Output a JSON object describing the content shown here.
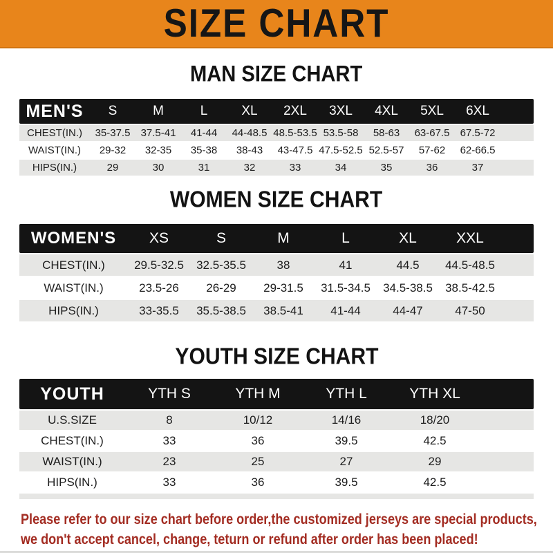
{
  "banner": {
    "title": "SIZE CHART"
  },
  "colors": {
    "banner_bg": "#E8851B",
    "header_bar_bg": "#141414",
    "row_shade": "#E6E6E4",
    "disclaimer_text": "#A32C22"
  },
  "men": {
    "heading": "MAN SIZE CHART",
    "header_label": "MEN'S",
    "columns": [
      "S",
      "M",
      "L",
      "XL",
      "2XL",
      "3XL",
      "4XL",
      "5XL",
      "6XL"
    ],
    "rows": [
      {
        "label": "CHEST(IN.)",
        "values": [
          "35-37.5",
          "37.5-41",
          "41-44",
          "44-48.5",
          "48.5-53.5",
          "53.5-58",
          "58-63",
          "63-67.5",
          "67.5-72"
        ]
      },
      {
        "label": "WAIST(IN.)",
        "values": [
          "29-32",
          "32-35",
          "35-38",
          "38-43",
          "43-47.5",
          "47.5-52.5",
          "52.5-57",
          "57-62",
          "62-66.5"
        ]
      },
      {
        "label": "HIPS(IN.)",
        "values": [
          "29",
          "30",
          "31",
          "32",
          "33",
          "34",
          "35",
          "36",
          "37"
        ]
      }
    ]
  },
  "women": {
    "heading": "WOMEN SIZE CHART",
    "header_label": "WOMEN'S",
    "columns": [
      "XS",
      "S",
      "M",
      "L",
      "XL",
      "XXL"
    ],
    "rows": [
      {
        "label": "CHEST(IN.)",
        "values": [
          "29.5-32.5",
          "32.5-35.5",
          "38",
          "41",
          "44.5",
          "44.5-48.5"
        ]
      },
      {
        "label": "WAIST(IN.)",
        "values": [
          "23.5-26",
          "26-29",
          "29-31.5",
          "31.5-34.5",
          "34.5-38.5",
          "38.5-42.5"
        ]
      },
      {
        "label": "HIPS(IN.)",
        "values": [
          "33-35.5",
          "35.5-38.5",
          "38.5-41",
          "41-44",
          "44-47",
          "47-50"
        ]
      }
    ]
  },
  "youth": {
    "heading": "YOUTH SIZE CHART",
    "header_label": "YOUTH",
    "columns": [
      "YTH S",
      "YTH M",
      "YTH L",
      "YTH XL"
    ],
    "rows": [
      {
        "label": "U.S.SIZE",
        "values": [
          "8",
          "10/12",
          "14/16",
          "18/20"
        ]
      },
      {
        "label": "CHEST(IN.)",
        "values": [
          "33",
          "36",
          "39.5",
          "42.5"
        ]
      },
      {
        "label": "WAIST(IN.)",
        "values": [
          "23",
          "25",
          "27",
          "29"
        ]
      },
      {
        "label": "HIPS(IN.)",
        "values": [
          "33",
          "36",
          "39.5",
          "42.5"
        ]
      }
    ]
  },
  "disclaimer": {
    "line1": "Please refer to our size chart before order,the customized jerseys are special products,",
    "line2": "we don't accept cancel, change, teturn or refund after order has been placed!"
  }
}
